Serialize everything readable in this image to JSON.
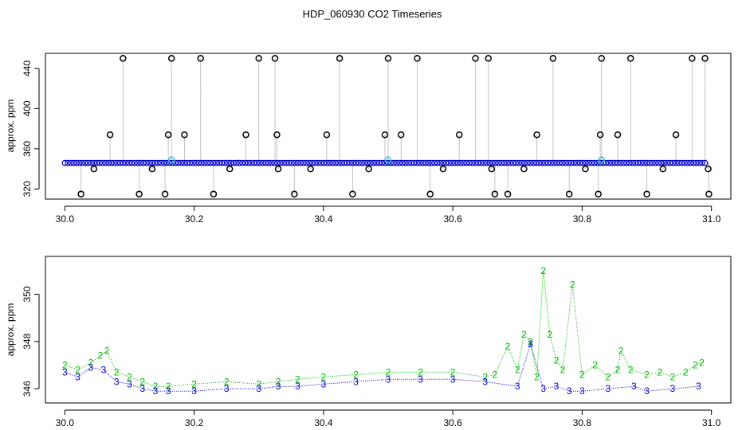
{
  "title": "HDP_060930  CO2 Timeseries",
  "colors": {
    "black": "#000000",
    "blue": "#0000cc",
    "cyan": "#33cccc",
    "green": "#00bb00",
    "gray": "#888888"
  },
  "chart_data": [
    {
      "type": "scatter",
      "title": "HDP_060930  CO2 Timeseries",
      "xlabel": "",
      "ylabel": "approx. ppm",
      "xlim": [
        29.97,
        31.03
      ],
      "ylim": [
        310,
        455
      ],
      "xticks": [
        "30.0",
        "30.2",
        "30.4",
        "30.6",
        "30.8",
        "31.0"
      ],
      "xtick_values": [
        30.0,
        30.2,
        30.4,
        30.6,
        30.8,
        31.0
      ],
      "yticks": [
        "320",
        "360",
        "400",
        "440"
      ],
      "ytick_values": [
        320,
        360,
        400,
        440
      ],
      "baseline": 346,
      "series": [
        {
          "marker": "circle",
          "color": "#0000cc",
          "x_start": 30.0,
          "x_end": 30.99,
          "y": 346
        },
        {
          "marker": "circle",
          "color": "#33cccc",
          "x": [
            30.165,
            30.5,
            30.83
          ],
          "y": [
            349,
            349,
            349
          ]
        },
        {
          "marker": "circle",
          "color": "#000000",
          "x": [
            30.025,
            30.045,
            30.07,
            30.09,
            30.115,
            30.135,
            30.155,
            30.16,
            30.165,
            30.185,
            30.21,
            30.23,
            30.255,
            30.28,
            30.3,
            30.325,
            30.328,
            30.33,
            30.355,
            30.38,
            30.405,
            30.425,
            30.445,
            30.47,
            30.495,
            30.5,
            30.52,
            30.545,
            30.565,
            30.585,
            30.61,
            30.635,
            30.655,
            30.66,
            30.665,
            30.685,
            30.71,
            30.73,
            30.755,
            30.78,
            30.805,
            30.825,
            30.828,
            30.83,
            30.855,
            30.875,
            30.9,
            30.925,
            30.945,
            30.97,
            30.99,
            30.995,
            30.996
          ],
          "y": [
            315,
            340,
            374,
            450,
            315,
            340,
            315,
            374,
            450,
            374,
            450,
            315,
            340,
            374,
            450,
            450,
            374,
            340,
            315,
            340,
            374,
            450,
            315,
            340,
            374,
            450,
            374,
            450,
            315,
            340,
            374,
            450,
            450,
            340,
            315,
            315,
            340,
            374,
            450,
            315,
            340,
            315,
            374,
            450,
            374,
            450,
            315,
            340,
            374,
            450,
            450,
            340,
            315
          ]
        }
      ]
    },
    {
      "type": "scatter",
      "title": "",
      "xlabel": "",
      "ylabel": "approx. ppm",
      "xlim": [
        29.97,
        31.03
      ],
      "ylim": [
        345.4,
        351.6
      ],
      "xticks": [
        "30.0",
        "30.2",
        "30.4",
        "30.6",
        "30.8",
        "31.0"
      ],
      "xtick_values": [
        30.0,
        30.2,
        30.4,
        30.6,
        30.8,
        31.0
      ],
      "yticks": [
        "346",
        "348",
        "350"
      ],
      "ytick_values": [
        346,
        348,
        350
      ],
      "series": [
        {
          "marker": "2",
          "color": "#00bb00",
          "x": [
            30.0,
            30.02,
            30.04,
            30.055,
            30.065,
            30.08,
            30.1,
            30.12,
            30.14,
            30.16,
            30.2,
            30.25,
            30.3,
            30.33,
            30.36,
            30.4,
            30.45,
            30.5,
            30.55,
            30.6,
            30.65,
            30.665,
            30.685,
            30.7,
            30.71,
            30.72,
            30.73,
            30.74,
            30.75,
            30.76,
            30.77,
            30.785,
            30.8,
            30.82,
            30.84,
            30.855,
            30.86,
            30.875,
            30.9,
            30.92,
            30.94,
            30.96,
            30.975,
            30.985
          ],
          "y": [
            347.0,
            346.8,
            347.1,
            347.4,
            347.6,
            346.7,
            346.5,
            346.3,
            346.1,
            346.1,
            346.2,
            346.3,
            346.2,
            346.3,
            346.4,
            346.5,
            346.6,
            346.7,
            346.7,
            346.7,
            346.5,
            346.6,
            347.8,
            346.8,
            348.3,
            348.0,
            346.5,
            351.0,
            348.3,
            347.2,
            346.8,
            350.4,
            346.6,
            347.0,
            346.5,
            346.8,
            347.6,
            346.8,
            346.6,
            346.7,
            346.5,
            346.7,
            347.0,
            347.1
          ]
        },
        {
          "marker": "3",
          "color": "#0000cc",
          "x": [
            30.0,
            30.02,
            30.04,
            30.06,
            30.08,
            30.1,
            30.12,
            30.14,
            30.16,
            30.2,
            30.25,
            30.3,
            30.33,
            30.36,
            30.4,
            30.45,
            30.5,
            30.55,
            30.6,
            30.65,
            30.7,
            30.72,
            30.74,
            30.76,
            30.78,
            30.8,
            30.84,
            30.88,
            30.9,
            30.94,
            30.98
          ],
          "y": [
            346.7,
            346.5,
            346.9,
            346.8,
            346.3,
            346.2,
            346.0,
            345.9,
            345.9,
            345.9,
            346.0,
            346.0,
            346.1,
            346.1,
            346.2,
            346.3,
            346.4,
            346.4,
            346.4,
            346.3,
            346.1,
            347.9,
            346.0,
            346.1,
            345.9,
            345.9,
            346.0,
            346.1,
            345.9,
            346.0,
            346.1
          ]
        }
      ]
    }
  ]
}
